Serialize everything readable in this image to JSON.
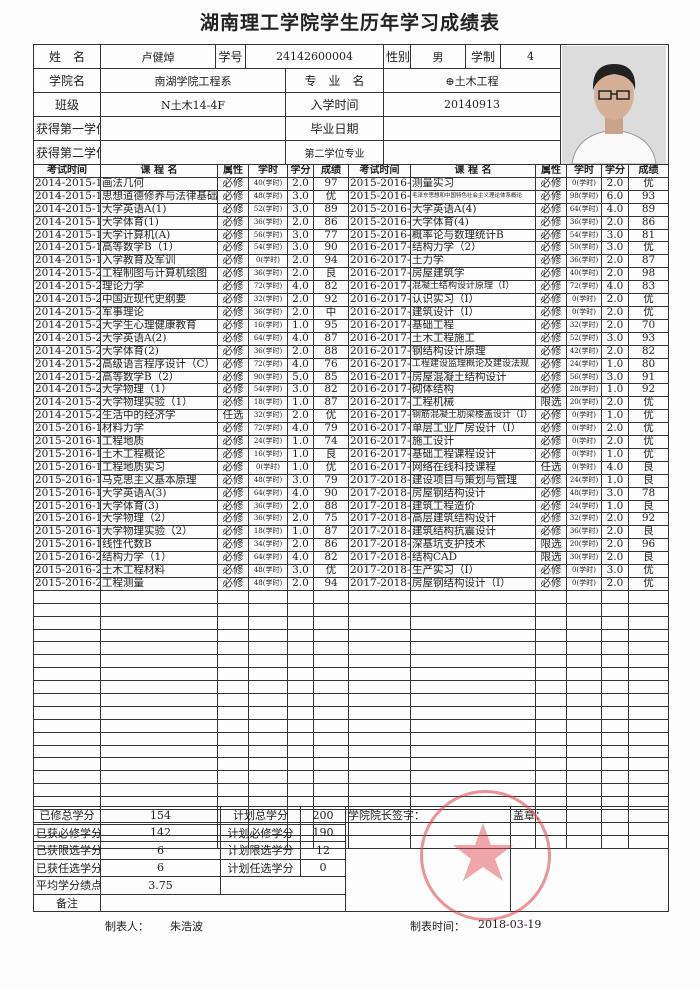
{
  "title": "湖南理工学院学生历年学习成绩表",
  "info": {
    "name_label": "姓　名",
    "name": "卢健焯",
    "id_label": "学号",
    "id": "24142600004",
    "gender_label": "性别",
    "gender": "男",
    "duration_label": "学制",
    "duration": "4",
    "college_label": "学院名",
    "college": "南湖学院工程系",
    "major_label": "专　业　名",
    "major": "⊕土木工程",
    "class_label": "班级",
    "class": "N土木14-4F",
    "enroll_label": "入学时间",
    "enroll": "20140913",
    "degree1_label": "获得第一学位",
    "degree1": "",
    "grad_label": "毕业日期",
    "grad": "",
    "degree2_label": "获得第二学位",
    "degree2": "",
    "major2_label": "第二学位专业",
    "major2": ""
  },
  "columns": [
    "考试时间",
    "课 程 名",
    "属性",
    "学时",
    "学分",
    "成绩"
  ],
  "left_courses": [
    [
      "2014-2015-1",
      "画法几何",
      "必修",
      "40(学时)",
      "2.0",
      "97"
    ],
    [
      "2014-2015-1",
      "思想道德修养与法律基础",
      "必修",
      "48(学时)",
      "3.0",
      "优"
    ],
    [
      "2014-2015-1",
      "大学英语A(1)",
      "必修",
      "52(学时)",
      "3.0",
      "89"
    ],
    [
      "2014-2015-1",
      "大学体育(1)",
      "必修",
      "36(学时)",
      "2.0",
      "86"
    ],
    [
      "2014-2015-1",
      "大学计算机(A)",
      "必修",
      "56(学时)",
      "3.0",
      "77"
    ],
    [
      "2014-2015-1",
      "高等数学B（1）",
      "必修",
      "54(学时)",
      "3.0",
      "90"
    ],
    [
      "2014-2015-1",
      "入学教育及军训",
      "必修",
      "0(学时)",
      "2.0",
      "94"
    ],
    [
      "2014-2015-2",
      "工程制图与计算机绘图",
      "必修",
      "36(学时)",
      "2.0",
      "良"
    ],
    [
      "2014-2015-2",
      "理论力学",
      "必修",
      "72(学时)",
      "4.0",
      "82"
    ],
    [
      "2014-2015-2",
      "中国近现代史纲要",
      "必修",
      "32(学时)",
      "2.0",
      "92"
    ],
    [
      "2014-2015-2",
      "军事理论",
      "必修",
      "36(学时)",
      "2.0",
      "中"
    ],
    [
      "2014-2015-2",
      "大学生心理健康教育",
      "必修",
      "16(学时)",
      "1.0",
      "95"
    ],
    [
      "2014-2015-2",
      "大学英语A(2)",
      "必修",
      "64(学时)",
      "4.0",
      "87"
    ],
    [
      "2014-2015-2",
      "大学体育(2)",
      "必修",
      "36(学时)",
      "2.0",
      "88"
    ],
    [
      "2014-2015-2",
      "高级语言程序设计（C）",
      "必修",
      "72(学时)",
      "4.0",
      "76"
    ],
    [
      "2014-2015-2",
      "高等数学B（2）",
      "必修",
      "90(学时)",
      "5.0",
      "85"
    ],
    [
      "2014-2015-2",
      "大学物理（1）",
      "必修",
      "54(学时)",
      "3.0",
      "82"
    ],
    [
      "2014-2015-2",
      "大学物理实验（1）",
      "必修",
      "18(学时)",
      "1.0",
      "87"
    ],
    [
      "2014-2015-2",
      "生活中的经济学",
      "任选",
      "32(学时)",
      "2.0",
      "优"
    ],
    [
      "2015-2016-1",
      "材料力学",
      "必修",
      "72(学时)",
      "4.0",
      "79"
    ],
    [
      "2015-2016-1",
      "工程地质",
      "必修",
      "24(学时)",
      "1.0",
      "74"
    ],
    [
      "2015-2016-1",
      "土木工程概论",
      "必修",
      "16(学时)",
      "1.0",
      "良"
    ],
    [
      "2015-2016-1",
      "工程地质实习",
      "必修",
      "0(学时)",
      "1.0",
      "优"
    ],
    [
      "2015-2016-1",
      "马克思主义基本原理",
      "必修",
      "48(学时)",
      "3.0",
      "79"
    ],
    [
      "2015-2016-1",
      "大学英语A(3)",
      "必修",
      "64(学时)",
      "4.0",
      "90"
    ],
    [
      "2015-2016-1",
      "大学体育(3)",
      "必修",
      "36(学时)",
      "2.0",
      "88"
    ],
    [
      "2015-2016-1",
      "大学物理（2）",
      "必修",
      "36(学时)",
      "2.0",
      "75"
    ],
    [
      "2015-2016-1",
      "大学物理实验（2）",
      "必修",
      "18(学时)",
      "1.0",
      "87"
    ],
    [
      "2015-2016-1",
      "线性代数B",
      "必修",
      "34(学时)",
      "2.0",
      "86"
    ],
    [
      "2015-2016-2",
      "结构力学（1）",
      "必修",
      "64(学时)",
      "4.0",
      "82"
    ],
    [
      "2015-2016-2",
      "土木工程材料",
      "必修",
      "48(学时)",
      "3.0",
      "优"
    ],
    [
      "2015-2016-2",
      "工程测量",
      "必修",
      "48(学时)",
      "2.0",
      "94"
    ]
  ],
  "right_courses": [
    [
      "2015-2016-2",
      "测量实习",
      "必修",
      "0(学时)",
      "2.0",
      "优"
    ],
    [
      "2015-2016-2",
      "毛泽东思想和中国特色社会主义理论体系概论",
      "必修",
      "98(学时)",
      "6.0",
      "93"
    ],
    [
      "2015-2016-2",
      "大学英语A(4)",
      "必修",
      "64(学时)",
      "4.0",
      "89"
    ],
    [
      "2015-2016-2",
      "大学体育(4)",
      "必修",
      "36(学时)",
      "2.0",
      "86"
    ],
    [
      "2015-2016-2",
      "概率论与数理统计B",
      "必修",
      "54(学时)",
      "3.0",
      "81"
    ],
    [
      "2016-2017-1",
      "结构力学（2）",
      "必修",
      "50(学时)",
      "3.0",
      "优"
    ],
    [
      "2016-2017-1",
      "土力学",
      "必修",
      "36(学时)",
      "2.0",
      "87"
    ],
    [
      "2016-2017-1",
      "房屋建筑学",
      "必修",
      "40(学时)",
      "2.0",
      "98"
    ],
    [
      "2016-2017-1",
      "混凝土结构设计原理（Ⅰ）",
      "必修",
      "72(学时)",
      "4.0",
      "83"
    ],
    [
      "2016-2017-1",
      "认识实习（Ⅰ）",
      "必修",
      "0(学时)",
      "2.0",
      "优"
    ],
    [
      "2016-2017-1",
      "建筑设计（Ⅰ）",
      "必修",
      "0(学时)",
      "2.0",
      "优"
    ],
    [
      "2016-2017-2",
      "基础工程",
      "必修",
      "32(学时)",
      "2.0",
      "70"
    ],
    [
      "2016-2017-2",
      "土木工程施工",
      "必修",
      "52(学时)",
      "3.0",
      "93"
    ],
    [
      "2016-2017-2",
      "钢结构设计原理",
      "必修",
      "42(学时)",
      "2.0",
      "82"
    ],
    [
      "2016-2017-2",
      "工程建设监理概论及建设法规",
      "必修",
      "24(学时)",
      "1.0",
      "80"
    ],
    [
      "2016-2017-2",
      "房屋混凝土结构设计",
      "必修",
      "56(学时)",
      "3.0",
      "91"
    ],
    [
      "2016-2017-2",
      "砌体结构",
      "必修",
      "28(学时)",
      "1.0",
      "92"
    ],
    [
      "2016-2017-2",
      "工程机械",
      "限选",
      "20(学时)",
      "2.0",
      "优"
    ],
    [
      "2016-2017-2",
      "钢筋混凝土肋梁楼盖设计（Ⅰ）",
      "必修",
      "0(学时)",
      "1.0",
      "优"
    ],
    [
      "2016-2017-2",
      "单层工业厂房设计（Ⅰ）",
      "必修",
      "0(学时)",
      "2.0",
      "优"
    ],
    [
      "2016-2017-2",
      "施工设计",
      "必修",
      "0(学时)",
      "2.0",
      "优"
    ],
    [
      "2016-2017-2",
      "基础工程课程设计",
      "必修",
      "0(学时)",
      "1.0",
      "优"
    ],
    [
      "2016-2017-2",
      "网络在线科技课程",
      "任选",
      "0(学时)",
      "4.0",
      "良"
    ],
    [
      "2017-2018-1",
      "建设项目与策划与管理",
      "必修",
      "24(学时)",
      "1.0",
      "良"
    ],
    [
      "2017-2018-1",
      "房屋钢结构设计",
      "必修",
      "48(学时)",
      "3.0",
      "78"
    ],
    [
      "2017-2018-1",
      "建筑工程造价",
      "必修",
      "24(学时)",
      "1.0",
      "良"
    ],
    [
      "2017-2018-1",
      "高层建筑结构设计",
      "必修",
      "32(学时)",
      "2.0",
      "92"
    ],
    [
      "2017-2018-1",
      "建筑结构抗震设计",
      "必修",
      "36(学时)",
      "2.0",
      "良"
    ],
    [
      "2017-2018-1",
      "深基坑支护技术",
      "限选",
      "20(学时)",
      "2.0",
      "96"
    ],
    [
      "2017-2018-1",
      "结构CAD",
      "限选",
      "30(学时)",
      "2.0",
      "良"
    ],
    [
      "2017-2018-1",
      "生产实习（Ⅰ）",
      "必修",
      "0(学时)",
      "3.0",
      "优"
    ],
    [
      "2017-2018-1",
      "房屋钢结构设计（Ⅰ）",
      "必修",
      "0(学时)",
      "2.0",
      "优"
    ]
  ],
  "summary": {
    "rows": [
      [
        "已修总学分",
        "154",
        "计划总学分",
        "200"
      ],
      [
        "已获必修学分",
        "142",
        "计划必修学分",
        "190"
      ],
      [
        "已获限选学分",
        "6",
        "计划限选学分",
        "12"
      ],
      [
        "已获任选学分",
        "6",
        "计划任选学分",
        "0"
      ],
      [
        "平均学分绩点",
        "3.75",
        "",
        ""
      ]
    ],
    "remark_label": "备注",
    "dean_sign_label": "学院院长签字：",
    "seal_label": "盖章："
  },
  "footer": {
    "maker_label": "制表人：",
    "maker": "朱浩波",
    "date_label": "制表时间：",
    "date": "2018-03-19"
  },
  "colors": {
    "stamp": "#dc3c46"
  }
}
